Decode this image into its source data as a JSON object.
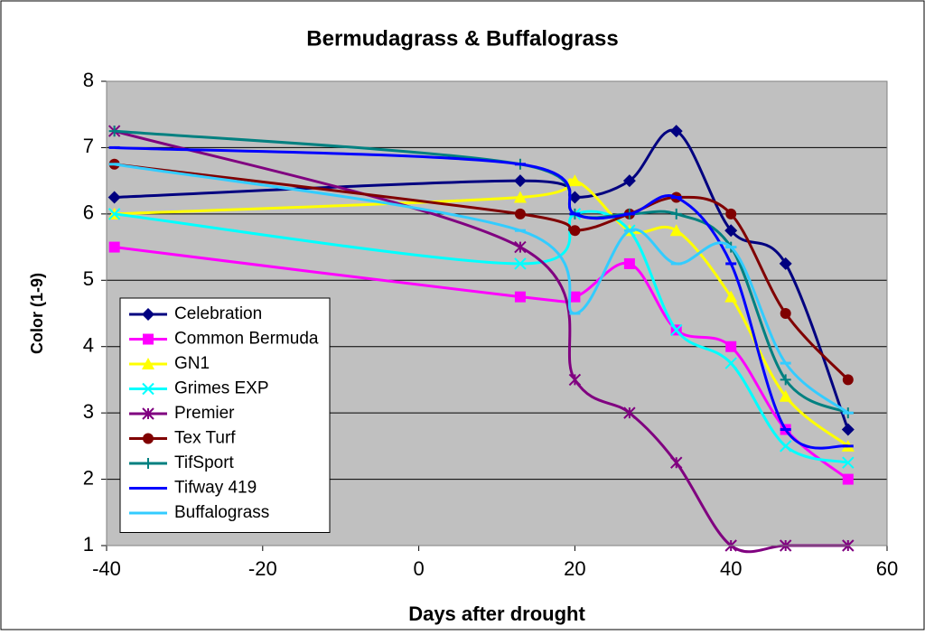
{
  "chart_data": {
    "type": "line",
    "title": "Bermudagrass & Buffalograss",
    "xlabel": "Days after drought",
    "ylabel": "Color (1-9)",
    "x": [
      -39,
      13,
      20,
      27,
      33,
      40,
      47,
      55
    ],
    "xlim": [
      -40,
      60
    ],
    "xticks": [
      -40,
      -20,
      0,
      20,
      40,
      60
    ],
    "ylim": [
      1,
      8
    ],
    "yticks": [
      1,
      2,
      3,
      4,
      5,
      6,
      7,
      8
    ],
    "grid": true,
    "smooth": true,
    "legend": "lower left",
    "series": [
      {
        "name": "Celebration",
        "color": "#000080",
        "marker": "diamond",
        "values": [
          6.25,
          6.5,
          6.25,
          6.5,
          7.25,
          5.75,
          5.25,
          2.75
        ]
      },
      {
        "name": "Common Bermuda",
        "color": "#FF00FF",
        "marker": "square",
        "values": [
          5.5,
          4.75,
          4.75,
          5.25,
          4.25,
          4.0,
          2.75,
          2.0
        ]
      },
      {
        "name": "GN1",
        "color": "#FFFF00",
        "marker": "triangle",
        "values": [
          6.0,
          6.25,
          6.5,
          5.75,
          5.75,
          4.75,
          3.25,
          2.5
        ]
      },
      {
        "name": "Grimes EXP",
        "color": "#00FFFF",
        "marker": "x",
        "values": [
          6.0,
          5.25,
          6.0,
          5.75,
          4.25,
          3.75,
          2.5,
          2.25
        ]
      },
      {
        "name": "Premier",
        "color": "#800080",
        "marker": "star",
        "values": [
          7.25,
          5.5,
          3.5,
          3.0,
          2.25,
          1.0,
          1.0,
          1.0
        ]
      },
      {
        "name": "Tex Turf",
        "color": "#800000",
        "marker": "circle",
        "values": [
          6.75,
          6.0,
          5.75,
          6.0,
          6.25,
          6.0,
          4.5,
          3.5
        ]
      },
      {
        "name": "TifSport",
        "color": "#008080",
        "marker": "plus",
        "values": [
          7.25,
          6.75,
          6.0,
          6.0,
          6.0,
          5.5,
          3.5,
          3.0
        ]
      },
      {
        "name": "Tifway 419",
        "color": "#0000FF",
        "marker": "dash",
        "values": [
          7.0,
          6.75,
          6.0,
          6.0,
          6.25,
          5.25,
          2.75,
          2.5
        ]
      },
      {
        "name": "Buffalograss",
        "color": "#33CCFF",
        "marker": "dash",
        "values": [
          6.75,
          5.75,
          4.5,
          5.75,
          5.25,
          5.5,
          3.75,
          3.0
        ]
      }
    ]
  }
}
